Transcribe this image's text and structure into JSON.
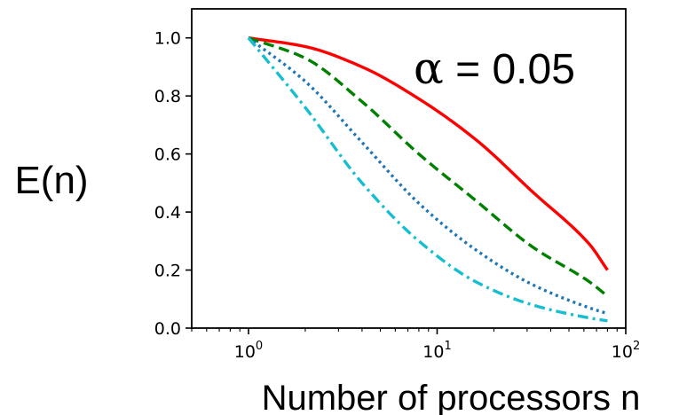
{
  "chart_data": {
    "type": "line",
    "title": "",
    "xlabel": "Number of processors n",
    "ylabel": "E(n)",
    "x_scale": "log",
    "xlim": [
      0.5,
      100
    ],
    "ylim": [
      0,
      1.1
    ],
    "x_ticks": [
      {
        "base": "10",
        "exp": "0",
        "value": 1
      },
      {
        "base": "10",
        "exp": "1",
        "value": 10
      },
      {
        "base": "10",
        "exp": "2",
        "value": 100
      }
    ],
    "y_ticks": [
      "0.0",
      "0.2",
      "0.4",
      "0.6",
      "0.8",
      "1.0"
    ],
    "grid": false,
    "annotation": {
      "symbol": "α",
      "text": " = 0.05"
    },
    "x": [
      1,
      2,
      4,
      8,
      16,
      32,
      64,
      80
    ],
    "series": [
      {
        "color": "#ff0000",
        "style": "solid",
        "values": [
          1.0,
          0.97,
          0.9,
          0.79,
          0.65,
          0.47,
          0.29,
          0.2
        ]
      },
      {
        "color": "#008000",
        "style": "dashed",
        "values": [
          1.0,
          0.93,
          0.78,
          0.6,
          0.44,
          0.28,
          0.16,
          0.11
        ]
      },
      {
        "color": "#1f77b4",
        "style": "dotted",
        "values": [
          1.0,
          0.85,
          0.64,
          0.43,
          0.27,
          0.15,
          0.07,
          0.05
        ]
      },
      {
        "color": "#17becf",
        "style": "dashdot",
        "values": [
          1.0,
          0.76,
          0.5,
          0.3,
          0.16,
          0.08,
          0.035,
          0.025
        ]
      }
    ]
  }
}
